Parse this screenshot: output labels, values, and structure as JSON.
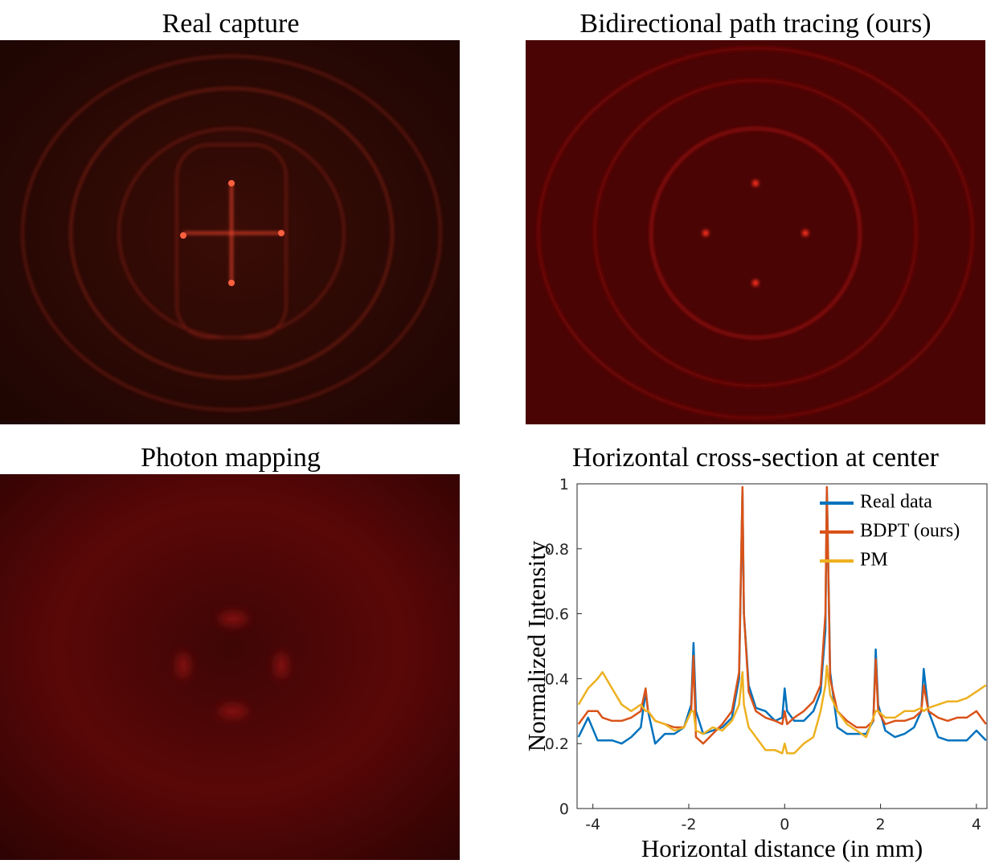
{
  "images": [
    {
      "title": "Real capture"
    },
    {
      "title": "Bidirectional path tracing (ours)"
    },
    {
      "title": "Photon mapping"
    }
  ],
  "chart_data": {
    "type": "line",
    "title": "Horizontal cross-section at center",
    "xlabel": "Horizontal distance (in mm)",
    "ylabel": "Normalized Intensity",
    "xlim": [
      -4.33,
      4.22
    ],
    "ylim": [
      0,
      1
    ],
    "xticks": [
      -4,
      -2,
      0,
      2,
      4
    ],
    "yticks": [
      0,
      0.2,
      0.4,
      0.6,
      0.8,
      1
    ],
    "legend": "top-right",
    "x": [
      -4.3,
      -4.1,
      -3.9,
      -3.8,
      -3.6,
      -3.4,
      -3.2,
      -3.0,
      -2.9,
      -2.85,
      -2.7,
      -2.5,
      -2.3,
      -2.1,
      -1.95,
      -1.9,
      -1.85,
      -1.7,
      -1.5,
      -1.3,
      -1.1,
      -0.95,
      -0.88,
      -0.85,
      -0.75,
      -0.6,
      -0.4,
      -0.2,
      -0.05,
      0,
      0.05,
      0.2,
      0.4,
      0.6,
      0.75,
      0.85,
      0.88,
      0.95,
      1.1,
      1.3,
      1.5,
      1.7,
      1.85,
      1.9,
      1.95,
      2.1,
      2.3,
      2.5,
      2.7,
      2.85,
      2.9,
      3.0,
      3.2,
      3.4,
      3.6,
      3.8,
      4.0,
      4.2
    ],
    "series": [
      {
        "name": "Real data",
        "color": "#0072bd",
        "values": [
          0.22,
          0.28,
          0.21,
          0.21,
          0.21,
          0.2,
          0.22,
          0.25,
          0.36,
          0.3,
          0.2,
          0.23,
          0.23,
          0.25,
          0.32,
          0.51,
          0.3,
          0.23,
          0.24,
          0.25,
          0.28,
          0.4,
          0.98,
          0.6,
          0.38,
          0.31,
          0.3,
          0.27,
          0.28,
          0.37,
          0.3,
          0.27,
          0.27,
          0.3,
          0.36,
          0.55,
          0.99,
          0.42,
          0.25,
          0.23,
          0.23,
          0.23,
          0.27,
          0.49,
          0.32,
          0.24,
          0.22,
          0.23,
          0.25,
          0.3,
          0.43,
          0.3,
          0.22,
          0.21,
          0.21,
          0.21,
          0.24,
          0.21
        ]
      },
      {
        "name": "BDPT (ours)",
        "color": "#d95319",
        "values": [
          0.26,
          0.3,
          0.3,
          0.28,
          0.27,
          0.27,
          0.28,
          0.3,
          0.37,
          0.3,
          0.27,
          0.26,
          0.25,
          0.25,
          0.3,
          0.47,
          0.22,
          0.2,
          0.23,
          0.26,
          0.3,
          0.42,
          0.99,
          0.6,
          0.36,
          0.3,
          0.28,
          0.27,
          0.26,
          0.3,
          0.26,
          0.28,
          0.3,
          0.33,
          0.38,
          0.6,
          0.99,
          0.4,
          0.3,
          0.27,
          0.25,
          0.25,
          0.27,
          0.46,
          0.3,
          0.26,
          0.27,
          0.27,
          0.28,
          0.3,
          0.38,
          0.3,
          0.28,
          0.27,
          0.28,
          0.28,
          0.3,
          0.26
        ]
      },
      {
        "name": "PM",
        "color": "#edb120",
        "values": [
          0.32,
          0.37,
          0.4,
          0.42,
          0.37,
          0.32,
          0.3,
          0.32,
          0.3,
          0.3,
          0.27,
          0.26,
          0.24,
          0.25,
          0.3,
          0.3,
          0.24,
          0.23,
          0.25,
          0.24,
          0.27,
          0.32,
          0.42,
          0.32,
          0.25,
          0.22,
          0.18,
          0.18,
          0.17,
          0.2,
          0.17,
          0.17,
          0.2,
          0.22,
          0.3,
          0.38,
          0.44,
          0.35,
          0.3,
          0.26,
          0.24,
          0.22,
          0.28,
          0.3,
          0.3,
          0.28,
          0.28,
          0.3,
          0.3,
          0.31,
          0.3,
          0.31,
          0.32,
          0.33,
          0.33,
          0.34,
          0.36,
          0.38
        ]
      }
    ]
  }
}
